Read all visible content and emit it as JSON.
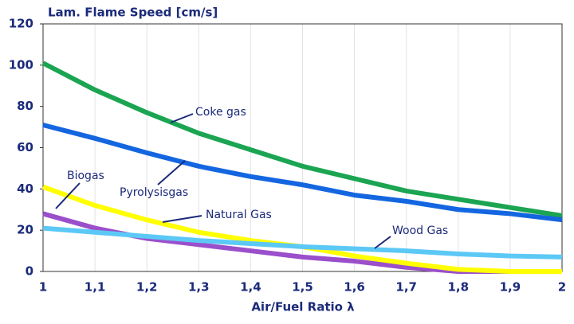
{
  "chart_data": {
    "type": "line",
    "title": "Lam. Flame Speed [cm/s]",
    "x_label": "Air/Fuel Ratio λ",
    "x": [
      1,
      1.1,
      1.2,
      1.3,
      1.4,
      1.5,
      1.6,
      1.7,
      1.8,
      1.9,
      2
    ],
    "series": [
      {
        "name": "Coke gas",
        "color": "#1ba552",
        "values": [
          101,
          88,
          77,
          67,
          59,
          51,
          45,
          39,
          35,
          31,
          27
        ]
      },
      {
        "name": "Pyrolysisgas",
        "color": "#1466e0",
        "values": [
          71,
          64.5,
          57.5,
          51,
          46,
          42,
          37,
          34,
          30,
          28,
          25
        ]
      },
      {
        "name": "Biogas",
        "color": "#9b4fcb",
        "values": [
          28,
          21,
          16,
          13,
          10,
          7,
          5,
          2,
          0,
          0,
          0
        ]
      },
      {
        "name": "Natural Gas",
        "color": "#ffff00",
        "values": [
          41,
          32,
          25,
          19,
          15,
          12,
          7.5,
          4,
          1,
          0,
          0
        ]
      },
      {
        "name": "Wood Gas",
        "color": "#5cc8f6",
        "values": [
          21,
          19,
          17,
          15,
          13.5,
          12,
          11,
          10,
          8.5,
          7.5,
          7
        ]
      }
    ],
    "xlim": [
      1,
      2
    ],
    "xticks": [
      1,
      {
        "value": 1.1,
        "label": "1,1"
      },
      {
        "value": 1.2,
        "label": "1,2"
      },
      {
        "value": 1.3,
        "label": "1,3"
      },
      {
        "value": 1.4,
        "label": "1,4"
      },
      {
        "value": 1.5,
        "label": "1,5"
      },
      {
        "value": 1.6,
        "label": "1,6"
      },
      {
        "value": 1.7,
        "label": "1,7"
      },
      {
        "value": 1.8,
        "label": "1,8"
      },
      {
        "value": 1.9,
        "label": "1,9"
      },
      2
    ],
    "ylim": [
      0,
      120
    ],
    "yticks": [
      0,
      20,
      40,
      60,
      80,
      100,
      120
    ],
    "grid": true
  }
}
